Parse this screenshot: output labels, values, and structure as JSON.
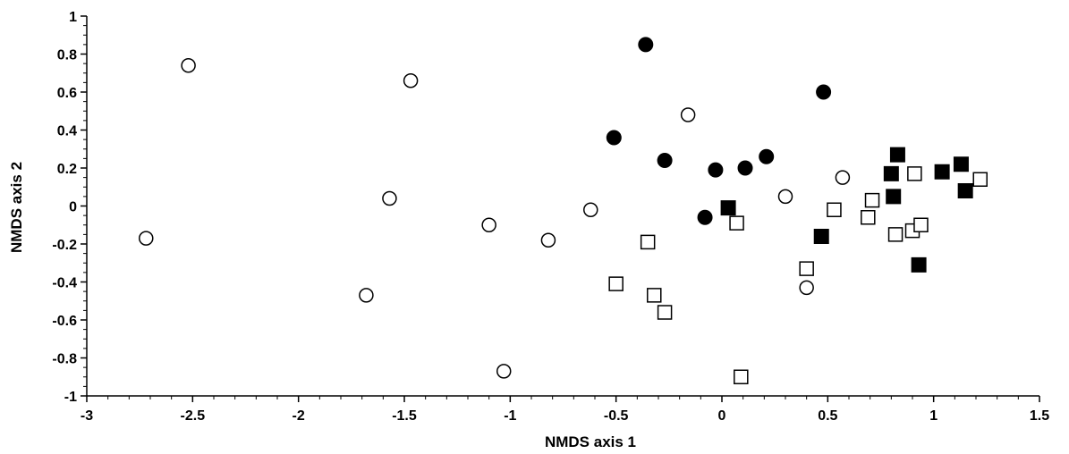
{
  "chart_data": {
    "type": "scatter",
    "xlabel": "NMDS axis 1",
    "ylabel": "NMDS axis 2",
    "xlim": [
      -3,
      1.5
    ],
    "ylim": [
      -1,
      1
    ],
    "xticks": [
      -3,
      -2.5,
      -2,
      -1.5,
      -1,
      -0.5,
      0,
      0.5,
      1,
      1.5
    ],
    "xtick_labels": [
      "-3",
      "-2.5",
      "-2",
      "-1.5",
      "-1",
      "-0.5",
      "0",
      "0.5",
      "1",
      "1.5"
    ],
    "yticks": [
      1,
      0.8,
      0.6,
      0.4,
      0.2,
      0,
      -0.2,
      -0.4,
      -0.6,
      -0.8,
      -1
    ],
    "ytick_labels": [
      "1",
      "0.8",
      "0.6",
      "0.4",
      "0.2",
      "0",
      "-0.2",
      "-0.4",
      "-0.6",
      "-0.8",
      "-1"
    ],
    "grid": false,
    "legend": "none",
    "series": [
      {
        "marker": "open-circle",
        "points": [
          [
            -2.72,
            -0.17
          ],
          [
            -2.52,
            0.74
          ],
          [
            -1.68,
            -0.47
          ],
          [
            -1.57,
            0.04
          ],
          [
            -1.47,
            0.66
          ],
          [
            -1.1,
            -0.1
          ],
          [
            -1.03,
            -0.87
          ],
          [
            -0.82,
            -0.18
          ],
          [
            -0.62,
            -0.02
          ],
          [
            -0.16,
            0.48
          ],
          [
            0.3,
            0.05
          ],
          [
            0.4,
            -0.43
          ],
          [
            0.57,
            0.15
          ]
        ]
      },
      {
        "marker": "filled-circle",
        "points": [
          [
            -0.51,
            0.36
          ],
          [
            -0.36,
            0.85
          ],
          [
            -0.27,
            0.24
          ],
          [
            -0.08,
            -0.06
          ],
          [
            -0.03,
            0.19
          ],
          [
            0.11,
            0.2
          ],
          [
            0.21,
            0.26
          ],
          [
            0.48,
            0.6
          ]
        ]
      },
      {
        "marker": "open-square",
        "points": [
          [
            -0.5,
            -0.41
          ],
          [
            -0.35,
            -0.19
          ],
          [
            -0.32,
            -0.47
          ],
          [
            -0.27,
            -0.56
          ],
          [
            0.07,
            -0.09
          ],
          [
            0.09,
            -0.9
          ],
          [
            0.4,
            -0.33
          ],
          [
            0.53,
            -0.02
          ],
          [
            0.69,
            -0.06
          ],
          [
            0.71,
            0.03
          ],
          [
            0.82,
            -0.15
          ],
          [
            0.9,
            -0.13
          ],
          [
            0.91,
            0.17
          ],
          [
            0.94,
            -0.1
          ],
          [
            1.22,
            0.14
          ]
        ]
      },
      {
        "marker": "filled-square",
        "points": [
          [
            0.03,
            -0.01
          ],
          [
            0.47,
            -0.16
          ],
          [
            0.8,
            0.17
          ],
          [
            0.81,
            0.05
          ],
          [
            0.83,
            0.27
          ],
          [
            0.93,
            -0.31
          ],
          [
            1.04,
            0.18
          ],
          [
            1.13,
            0.22
          ],
          [
            1.15,
            0.08
          ]
        ]
      }
    ]
  }
}
